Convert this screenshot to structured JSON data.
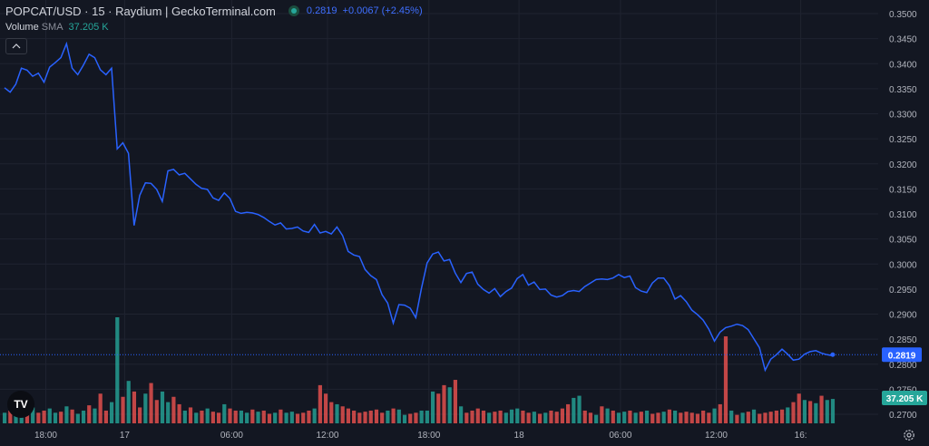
{
  "header": {
    "title": "POPCAT/USD · 15 · Raydium  |  GeckoTerminal.com",
    "price": "0.2819",
    "change": "+0.0067 (+2.45%)"
  },
  "volume_legend": {
    "label": "Volume",
    "sma": "SMA",
    "value": "37.205 K"
  },
  "badges": {
    "last_price": "0.2819",
    "last_volume": "37.205 K"
  },
  "colors": {
    "background": "#131722",
    "line": "#2962ff",
    "grid": "#1f2330",
    "vol_up": "#26a69a",
    "vol_down": "#ef5350",
    "price_badge": "#2962ff",
    "volume_badge": "#26a69a",
    "axis_text": "#b2b5be"
  },
  "chart_data": {
    "type": "line",
    "y_ticks": [
      "0.2700",
      "0.2750",
      "0.2800",
      "0.2850",
      "0.2900",
      "0.2950",
      "0.3000",
      "0.3050",
      "0.3100",
      "0.3150",
      "0.3200",
      "0.3250",
      "0.3300",
      "0.3350",
      "0.3400",
      "0.3450",
      "0.3500"
    ],
    "ylim": [
      0.2694,
      0.3506
    ],
    "x_tick_labels": [
      "18:00",
      "17",
      "06:00",
      "12:00",
      "18:00",
      "18",
      "06:00",
      "12:00",
      "16:"
    ],
    "x_tick_bars": [
      7,
      21,
      40,
      57,
      75,
      91,
      109,
      126,
      141
    ],
    "price_line": {
      "bars": [
        0,
        1,
        2,
        3,
        4,
        5,
        6,
        7,
        8,
        9,
        10,
        11,
        12,
        13,
        14,
        15,
        16,
        17,
        18,
        19,
        20,
        21,
        22,
        23,
        24,
        25,
        26,
        27,
        28,
        29,
        30,
        31,
        32,
        33,
        34,
        35,
        36,
        37,
        38,
        39,
        40,
        41,
        42,
        43,
        44,
        45,
        46,
        47,
        48,
        49,
        50,
        51,
        52,
        53,
        54,
        55,
        56,
        57,
        58,
        59,
        60,
        61,
        62,
        63,
        64,
        65,
        66,
        67,
        68,
        69,
        70,
        71,
        72,
        73,
        74,
        75,
        76,
        77,
        78,
        79,
        80,
        81,
        82,
        83,
        84,
        85,
        86,
        87,
        88,
        89,
        90,
        91,
        92,
        93,
        94,
        95,
        96,
        97,
        98,
        99,
        100,
        101,
        102,
        103,
        104,
        105,
        106,
        107,
        108,
        109,
        110,
        111,
        112,
        113,
        114,
        115,
        116,
        117,
        118,
        119,
        120,
        121,
        122,
        123,
        124,
        125,
        126,
        127,
        128,
        129,
        130,
        131,
        132,
        133,
        134,
        135,
        136,
        137,
        138,
        139,
        140,
        141,
        142,
        143,
        144,
        145,
        146,
        147
      ],
      "values": [
        0.3352,
        0.3343,
        0.3359,
        0.3391,
        0.3387,
        0.3375,
        0.3381,
        0.3363,
        0.3393,
        0.3402,
        0.3412,
        0.344,
        0.3391,
        0.3378,
        0.3397,
        0.3419,
        0.3412,
        0.3388,
        0.3378,
        0.3391,
        0.323,
        0.3242,
        0.3221,
        0.3077,
        0.3137,
        0.3162,
        0.3161,
        0.3149,
        0.3125,
        0.3186,
        0.3189,
        0.3178,
        0.3181,
        0.317,
        0.3159,
        0.3151,
        0.3149,
        0.3132,
        0.3127,
        0.3142,
        0.3131,
        0.3105,
        0.3101,
        0.3103,
        0.3102,
        0.3099,
        0.3093,
        0.3085,
        0.3078,
        0.3082,
        0.307,
        0.3071,
        0.3074,
        0.3066,
        0.3063,
        0.3079,
        0.3062,
        0.3065,
        0.306,
        0.3074,
        0.3057,
        0.3025,
        0.3018,
        0.3015,
        0.2989,
        0.2977,
        0.2969,
        0.2939,
        0.2922,
        0.2882,
        0.2919,
        0.2918,
        0.2912,
        0.2893,
        0.2951,
        0.3002,
        0.302,
        0.3024,
        0.3006,
        0.3009,
        0.2982,
        0.2963,
        0.2981,
        0.2984,
        0.296,
        0.2949,
        0.2942,
        0.2951,
        0.2935,
        0.2945,
        0.2952,
        0.2971,
        0.2979,
        0.2958,
        0.2964,
        0.2949,
        0.295,
        0.2938,
        0.2934,
        0.2937,
        0.2945,
        0.2947,
        0.2945,
        0.2955,
        0.2962,
        0.2969,
        0.297,
        0.2969,
        0.2972,
        0.2979,
        0.2973,
        0.2976,
        0.2953,
        0.2946,
        0.2943,
        0.2962,
        0.2972,
        0.2972,
        0.2957,
        0.293,
        0.2937,
        0.2925,
        0.2908,
        0.2899,
        0.2888,
        0.287,
        0.2846,
        0.2864,
        0.2873,
        0.2876,
        0.288,
        0.2877,
        0.2869,
        0.2851,
        0.2833,
        0.2788,
        0.281,
        0.2819,
        0.283,
        0.282,
        0.2808,
        0.281,
        0.282,
        0.2825,
        0.2827,
        0.2822,
        0.2819,
        0.2817,
        0.2818,
        0.2819
      ]
    },
    "volume_bars": {
      "bars": [
        0,
        1,
        2,
        3,
        4,
        5,
        6,
        7,
        8,
        9,
        10,
        11,
        12,
        13,
        14,
        15,
        16,
        17,
        18,
        19,
        20,
        21,
        22,
        23,
        24,
        25,
        26,
        27,
        28,
        29,
        30,
        31,
        32,
        33,
        34,
        35,
        36,
        37,
        38,
        39,
        40,
        41,
        42,
        43,
        44,
        45,
        46,
        47,
        48,
        49,
        50,
        51,
        52,
        53,
        54,
        55,
        56,
        57,
        58,
        59,
        60,
        61,
        62,
        63,
        64,
        65,
        66,
        67,
        68,
        69,
        70,
        71,
        72,
        73,
        74,
        75,
        76,
        77,
        78,
        79,
        80,
        81,
        82,
        83,
        84,
        85,
        86,
        87,
        88,
        89,
        90,
        91,
        92,
        93,
        94,
        95,
        96,
        97,
        98,
        99,
        100,
        101,
        102,
        103,
        104,
        105,
        106,
        107,
        108,
        109,
        110,
        111,
        112,
        113,
        114,
        115,
        116,
        117,
        118,
        119,
        120,
        121,
        122,
        123,
        124,
        125,
        126,
        127,
        128,
        129,
        130,
        131,
        132,
        133,
        134,
        135,
        136,
        137,
        138,
        139,
        140,
        141,
        142,
        143,
        144,
        145,
        146,
        147
      ],
      "values": [
        0.1,
        0.12,
        0.08,
        0.18,
        0.22,
        0.15,
        0.1,
        0.12,
        0.14,
        0.1,
        0.11,
        0.16,
        0.13,
        0.09,
        0.12,
        0.17,
        0.14,
        0.28,
        0.12,
        0.2,
        1.0,
        0.25,
        0.4,
        0.3,
        0.15,
        0.28,
        0.38,
        0.22,
        0.3,
        0.2,
        0.25,
        0.18,
        0.12,
        0.15,
        0.1,
        0.12,
        0.14,
        0.11,
        0.1,
        0.18,
        0.14,
        0.12,
        0.12,
        0.1,
        0.13,
        0.11,
        0.12,
        0.09,
        0.1,
        0.13,
        0.1,
        0.11,
        0.09,
        0.1,
        0.12,
        0.14,
        0.36,
        0.28,
        0.2,
        0.18,
        0.16,
        0.14,
        0.12,
        0.1,
        0.11,
        0.12,
        0.13,
        0.1,
        0.12,
        0.14,
        0.13,
        0.08,
        0.09,
        0.1,
        0.12,
        0.12,
        0.3,
        0.28,
        0.36,
        0.34,
        0.41,
        0.16,
        0.1,
        0.12,
        0.14,
        0.12,
        0.1,
        0.11,
        0.12,
        0.1,
        0.13,
        0.14,
        0.12,
        0.1,
        0.11,
        0.09,
        0.1,
        0.12,
        0.11,
        0.14,
        0.18,
        0.24,
        0.26,
        0.12,
        0.1,
        0.08,
        0.16,
        0.14,
        0.12,
        0.1,
        0.11,
        0.12,
        0.1,
        0.11,
        0.12,
        0.09,
        0.1,
        0.11,
        0.13,
        0.12,
        0.1,
        0.11,
        0.1,
        0.09,
        0.12,
        0.1,
        0.14,
        0.18,
        0.82,
        0.12,
        0.08,
        0.1,
        0.11,
        0.13,
        0.09,
        0.1,
        0.11,
        0.12,
        0.13,
        0.15,
        0.2,
        0.28,
        0.22,
        0.21,
        0.19,
        0.26,
        0.22,
        0.23
      ],
      "up": [
        1,
        0,
        1,
        1,
        0,
        1,
        0,
        0,
        1,
        1,
        0,
        1,
        0,
        1,
        1,
        0,
        1,
        0,
        0,
        1,
        1,
        0,
        1,
        0,
        0,
        1,
        0,
        0,
        1,
        1,
        0,
        0,
        1,
        0,
        1,
        0,
        1,
        0,
        0,
        1,
        0,
        0,
        1,
        1,
        0,
        1,
        0,
        0,
        1,
        0,
        1,
        1,
        0,
        0,
        0,
        1,
        0,
        0,
        0,
        1,
        0,
        0,
        0,
        0,
        0,
        0,
        0,
        0,
        1,
        0,
        1,
        1,
        0,
        0,
        1,
        1,
        1,
        0,
        0,
        1,
        0,
        1,
        0,
        0,
        0,
        0,
        1,
        0,
        0,
        1,
        1,
        1,
        0,
        0,
        1,
        0,
        1,
        0,
        0,
        0,
        0,
        1,
        1,
        0,
        0,
        1,
        0,
        1,
        0,
        1,
        1,
        0,
        1,
        0,
        1,
        0,
        0,
        1,
        0,
        1,
        0,
        0,
        0,
        0,
        0,
        0,
        1,
        0,
        0,
        1,
        0,
        1,
        0,
        1,
        0,
        0,
        0,
        0,
        0,
        1,
        0,
        0,
        1,
        0,
        1,
        0,
        1,
        1
      ]
    }
  }
}
